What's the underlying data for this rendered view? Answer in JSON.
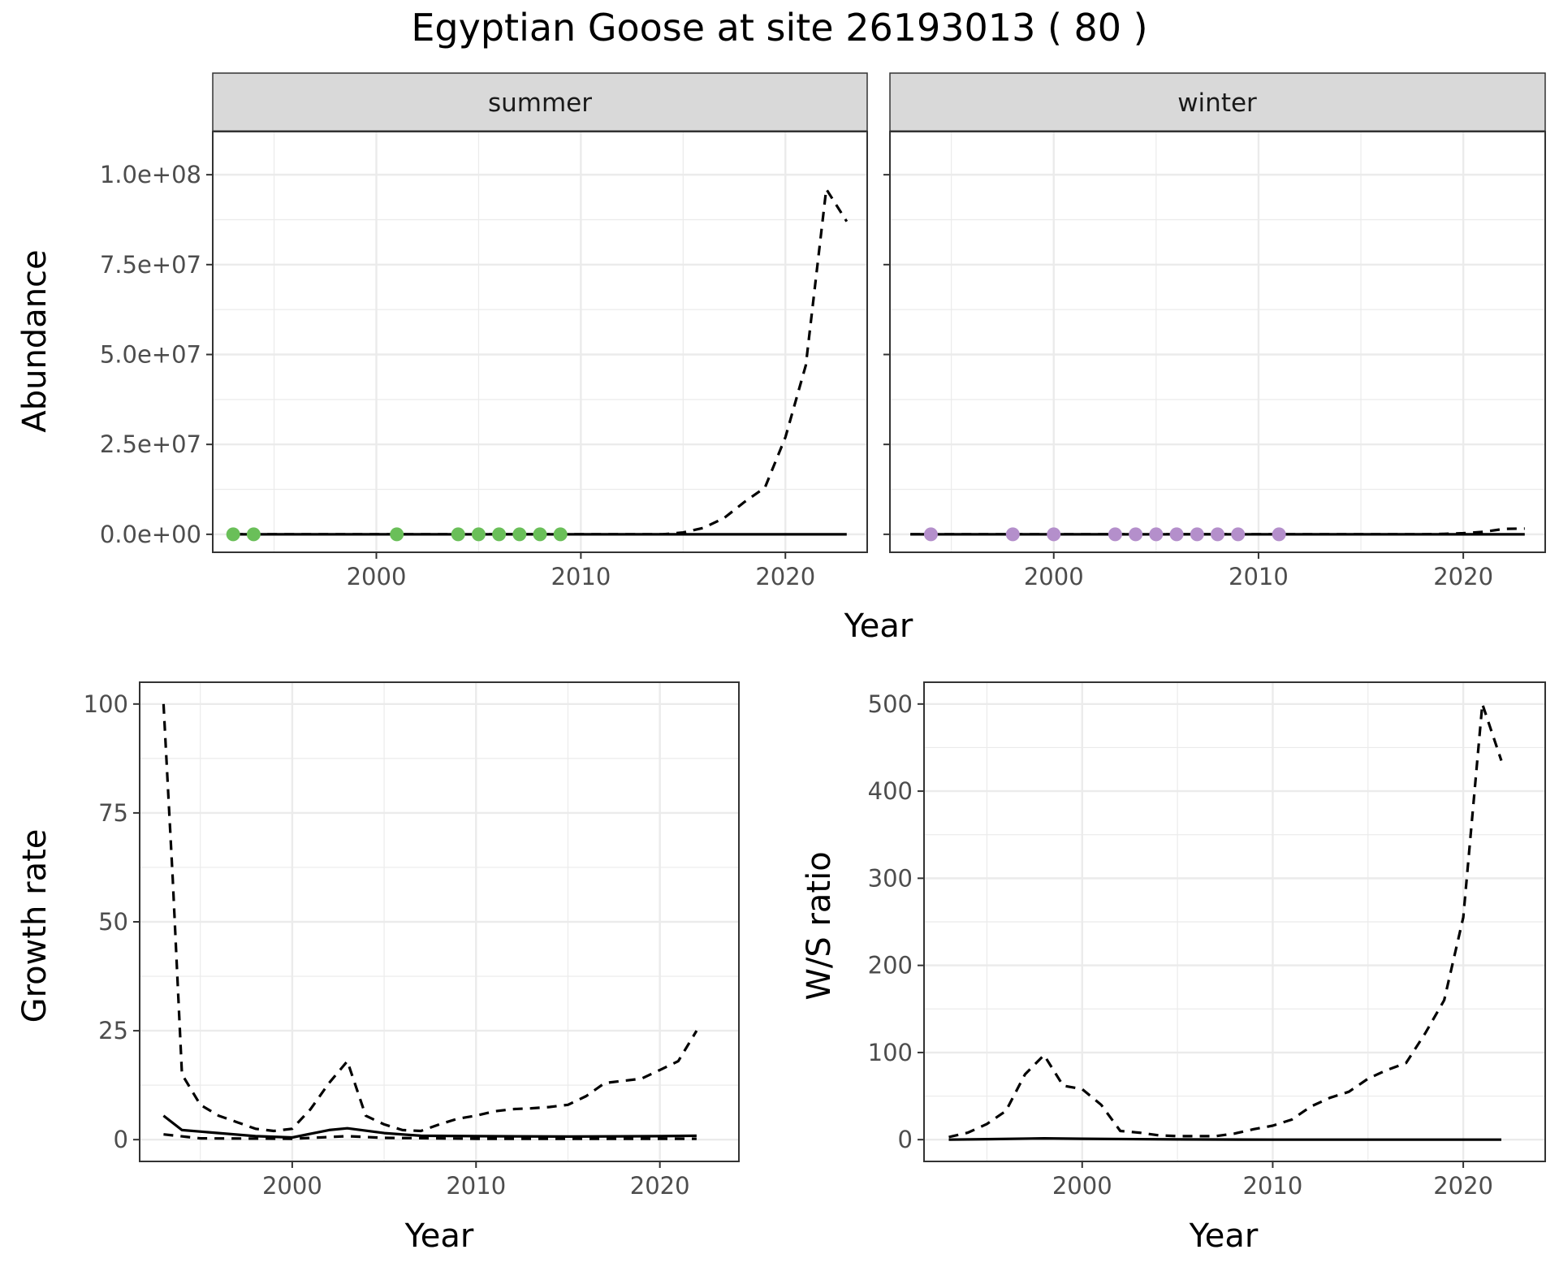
{
  "title": "Egyptian Goose at site 26193013 ( 80 )",
  "colors": {
    "summer_points": "#6abf59",
    "winter_points": "#b48fcb",
    "lines": "#000000",
    "grid": "#ebebeb",
    "strip_fill": "#d9d9d9"
  },
  "chart_data": [
    {
      "type": "line",
      "panel": "summer",
      "xlabel": "Year",
      "ylabel": "Abundance",
      "xlim": [
        1992,
        2024
      ],
      "ylim": [
        -5000000,
        112000000
      ],
      "x_ticks": [
        2000,
        2010,
        2020
      ],
      "y_ticks": [
        0,
        25000000,
        50000000,
        75000000,
        100000000
      ],
      "y_tick_labels": [
        "0.0e+00",
        "2.5e+07",
        "5.0e+07",
        "7.5e+07",
        "1.0e+08"
      ],
      "grid": true,
      "series": [
        {
          "style": "dashed",
          "x": [
            1993,
            2000,
            2005,
            2010,
            2014,
            2015,
            2016,
            2017,
            2018,
            2019,
            2020,
            2021,
            2022,
            2023
          ],
          "y": [
            0,
            0,
            0,
            0,
            0,
            500000,
            1800000,
            4500000,
            9000000,
            13000000,
            27000000,
            47000000,
            96000000,
            87000000
          ]
        },
        {
          "style": "solid",
          "x": [
            1993,
            2023
          ],
          "y": [
            0,
            0
          ]
        },
        {
          "style": "points",
          "x": [
            1993,
            1994,
            2001,
            2004,
            2005,
            2006,
            2007,
            2008,
            2009
          ],
          "y": [
            0,
            0,
            0,
            0,
            0,
            0,
            0,
            0,
            0
          ]
        }
      ]
    },
    {
      "type": "line",
      "panel": "winter",
      "xlabel": "Year",
      "ylabel": "Abundance",
      "xlim": [
        1992,
        2024
      ],
      "ylim": [
        -5000000,
        112000000
      ],
      "x_ticks": [
        2000,
        2010,
        2020
      ],
      "y_ticks": [
        0,
        25000000,
        50000000,
        75000000,
        100000000
      ],
      "grid": true,
      "series": [
        {
          "style": "dashed",
          "x": [
            1993,
            2000,
            2010,
            2018,
            2019,
            2020,
            2021,
            2022,
            2023
          ],
          "y": [
            0,
            0,
            0,
            0,
            100000,
            300000,
            700000,
            1500000,
            1600000
          ]
        },
        {
          "style": "solid",
          "x": [
            1993,
            2023
          ],
          "y": [
            0,
            0
          ]
        },
        {
          "style": "points",
          "x": [
            1994,
            1998,
            2000,
            2003,
            2004,
            2005,
            2006,
            2007,
            2008,
            2009,
            2011
          ],
          "y": [
            0,
            0,
            0,
            0,
            0,
            0,
            0,
            0,
            0,
            0,
            0
          ]
        }
      ]
    },
    {
      "type": "line",
      "panel": "growth",
      "xlabel": "Year",
      "ylabel": "Growth rate",
      "xlim": [
        1991.7,
        2024.3
      ],
      "ylim": [
        -5,
        105
      ],
      "x_ticks": [
        2000,
        2010,
        2020
      ],
      "y_ticks": [
        0,
        25,
        50,
        75,
        100
      ],
      "grid": true,
      "series": [
        {
          "style": "dashed",
          "x": [
            1993,
            1993.5,
            1994,
            1995,
            1996,
            1997,
            1998,
            1999,
            2000,
            2001,
            2002,
            2003,
            2004,
            2005,
            2006,
            2007,
            2008,
            2009,
            2010,
            2011,
            2012,
            2013,
            2014,
            2015,
            2016,
            2017,
            2018,
            2019,
            2020,
            2021,
            2022
          ],
          "y": [
            100,
            60,
            15,
            8,
            5.5,
            4,
            2.5,
            2,
            2.5,
            7,
            13,
            18,
            5.5,
            3.5,
            2.2,
            2,
            3.5,
            4.8,
            5.5,
            6.5,
            7,
            7.2,
            7.5,
            8,
            10,
            13,
            13.5,
            14,
            16,
            18,
            25
          ]
        },
        {
          "style": "solid",
          "x": [
            1993,
            1994,
            1996,
            1998,
            2000,
            2002,
            2003,
            2005,
            2007,
            2010,
            2015,
            2020,
            2022
          ],
          "y": [
            5.5,
            2.2,
            1.5,
            0.8,
            0.5,
            2.2,
            2.6,
            1.5,
            0.9,
            0.8,
            0.7,
            0.8,
            0.9
          ]
        },
        {
          "style": "dashed",
          "x": [
            1993,
            1995,
            2000,
            2003,
            2005,
            2010,
            2015,
            2020,
            2022
          ],
          "y": [
            1.2,
            0.3,
            0.2,
            0.8,
            0.4,
            0.2,
            0.2,
            0.2,
            0.2
          ]
        }
      ]
    },
    {
      "type": "line",
      "panel": "ratio",
      "xlabel": "Year",
      "ylabel": "W/S ratio",
      "xlim": [
        1991.7,
        2024.3
      ],
      "ylim": [
        -25,
        525
      ],
      "x_ticks": [
        2000,
        2010,
        2020
      ],
      "y_ticks": [
        0,
        100,
        200,
        300,
        400,
        500
      ],
      "grid": true,
      "series": [
        {
          "style": "dashed",
          "x": [
            1993,
            1994,
            1995,
            1996,
            1997,
            1998,
            1999,
            2000,
            2001,
            2002,
            2003,
            2004,
            2005,
            2006,
            2007,
            2008,
            2009,
            2010,
            2011,
            2012,
            2013,
            2014,
            2015,
            2016,
            2017,
            2018,
            2019,
            2020,
            2021,
            2022
          ],
          "y": [
            3,
            8,
            18,
            33,
            75,
            97,
            62,
            58,
            40,
            10,
            8,
            5,
            4,
            4,
            4,
            7,
            12,
            16,
            23,
            38,
            48,
            55,
            70,
            80,
            88,
            122,
            160,
            255,
            500,
            435
          ]
        },
        {
          "style": "solid",
          "x": [
            1993,
            1995,
            1998,
            2000,
            2005,
            2010,
            2015,
            2022
          ],
          "y": [
            0,
            0.5,
            1.5,
            1,
            0.3,
            0,
            0,
            0
          ]
        }
      ]
    }
  ]
}
